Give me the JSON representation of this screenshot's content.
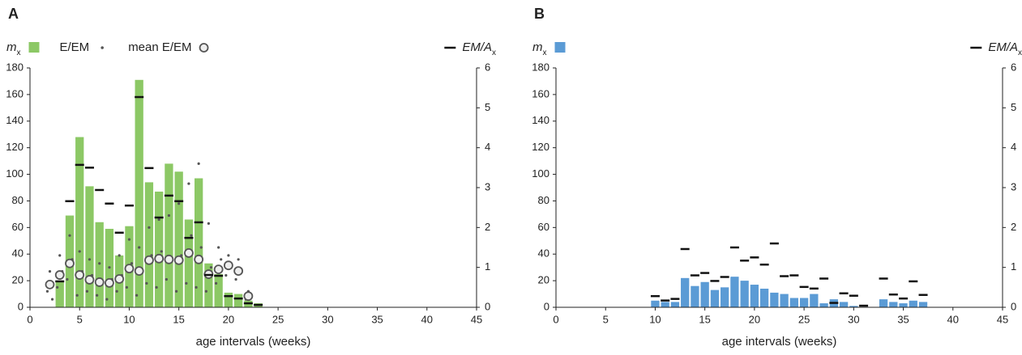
{
  "chart_data": [
    {
      "type": "bar",
      "panel_label": "A",
      "xlabel": "age intervals (weeks)",
      "xlim": [
        0,
        45
      ],
      "xticks": [
        0,
        5,
        10,
        15,
        20,
        25,
        30,
        35,
        40,
        45
      ],
      "ylim": [
        0,
        180
      ],
      "yticks": [
        0,
        20,
        40,
        60,
        80,
        100,
        120,
        140,
        160,
        180
      ],
      "y2lim": [
        0,
        6
      ],
      "y2ticks": [
        0,
        1,
        2,
        3,
        4,
        5,
        6
      ],
      "series": [
        {
          "name": "m",
          "name_sub": "x",
          "kind": "bar",
          "color": "#8cc865",
          "x": [
            3,
            4,
            5,
            6,
            7,
            8,
            9,
            10,
            11,
            12,
            13,
            14,
            15,
            16,
            17,
            18,
            19,
            20,
            21,
            22,
            23
          ],
          "values": [
            20,
            69,
            128,
            91,
            64,
            59,
            39,
            61,
            171,
            94,
            87,
            108,
            102,
            66,
            97,
            33,
            25,
            11,
            10,
            5,
            3
          ]
        },
        {
          "name": "E/EM",
          "kind": "dot",
          "axis": "y2",
          "color": "#555555",
          "x": [
            1.75,
            2,
            2.25,
            2.75,
            3,
            3.25,
            3.75,
            4,
            4.25,
            4.75,
            5,
            5.25,
            5.75,
            6,
            6.25,
            6.75,
            7,
            7.25,
            7.75,
            8,
            8.25,
            8.75,
            9,
            9.25,
            9.75,
            10,
            10.25,
            10.75,
            11,
            11.25,
            11.75,
            12,
            12.25,
            12.75,
            13,
            13.25,
            13.75,
            14,
            14.25,
            14.75,
            15,
            15.25,
            15.75,
            16,
            16.25,
            16.75,
            17,
            17.25,
            17.75,
            18,
            18.25,
            18.75,
            19,
            19.25,
            19.75,
            20,
            20.25,
            20.75,
            21,
            21.25,
            21.75,
            22,
            22.25
          ],
          "values": [
            0.4,
            0.9,
            0.2,
            0.5,
            1.3,
            0.9,
            0.7,
            1.8,
            1.2,
            0.3,
            1.4,
            0.9,
            0.4,
            1.2,
            0.8,
            0.3,
            1.1,
            0.6,
            0.2,
            1.0,
            0.7,
            0.4,
            1.3,
            0.8,
            0.5,
            1.7,
            1.1,
            0.3,
            1.5,
            0.9,
            0.6,
            2.0,
            1.3,
            0.5,
            2.2,
            1.4,
            0.7,
            2.3,
            1.2,
            0.4,
            2.6,
            1.3,
            0.6,
            3.1,
            1.8,
            0.5,
            3.6,
            1.5,
            0.4,
            2.1,
            1.0,
            0.6,
            1.5,
            1.2,
            0.8,
            1.3,
            1.1,
            0.7,
            1.2,
            0.9,
            0.2,
            0.4,
            0.3
          ]
        },
        {
          "name": "mean E/EM",
          "kind": "circle",
          "axis": "y2",
          "color": "#555555",
          "x": [
            2,
            3,
            4,
            5,
            6,
            7,
            8,
            9,
            10,
            11,
            12,
            13,
            14,
            15,
            16,
            17,
            18,
            19,
            20,
            21,
            22
          ],
          "values": [
            0.57,
            0.81,
            1.1,
            0.81,
            0.69,
            0.63,
            0.61,
            0.71,
            0.97,
            0.91,
            1.18,
            1.22,
            1.2,
            1.18,
            1.36,
            1.2,
            0.83,
            0.95,
            1.05,
            0.91,
            0.28
          ]
        },
        {
          "name": "EM/A",
          "name_sub": "x",
          "kind": "dash",
          "axis": "y2",
          "color": "#111111",
          "x": [
            3,
            4,
            5,
            6,
            7,
            8,
            9,
            10,
            11,
            12,
            13,
            14,
            15,
            16,
            17,
            18,
            19,
            20,
            21,
            22,
            23
          ],
          "values": [
            0.65,
            2.66,
            3.57,
            3.5,
            2.94,
            2.6,
            1.87,
            2.55,
            5.27,
            3.49,
            2.25,
            2.8,
            2.66,
            1.74,
            2.13,
            0.81,
            0.79,
            0.28,
            0.22,
            0.1,
            0.06
          ]
        }
      ]
    },
    {
      "type": "bar",
      "panel_label": "B",
      "xlabel": "age intervals (weeks)",
      "xlim": [
        0,
        45
      ],
      "xticks": [
        0,
        5,
        10,
        15,
        20,
        25,
        30,
        35,
        40,
        45
      ],
      "ylim": [
        0,
        180
      ],
      "yticks": [
        0,
        20,
        40,
        60,
        80,
        100,
        120,
        140,
        160,
        180
      ],
      "y2lim": [
        0,
        6
      ],
      "y2ticks": [
        0,
        1,
        2,
        3,
        4,
        5,
        6
      ],
      "series": [
        {
          "name": "m",
          "name_sub": "x",
          "kind": "bar",
          "color": "#5b9bd5",
          "x": [
            10,
            11,
            12,
            13,
            14,
            15,
            16,
            17,
            18,
            19,
            20,
            21,
            22,
            23,
            24,
            25,
            26,
            27,
            28,
            29,
            30,
            33,
            34,
            35,
            36,
            37
          ],
          "values": [
            5,
            4,
            4,
            22,
            16,
            19,
            13,
            15,
            23,
            20,
            17,
            14,
            11,
            10,
            7,
            7,
            10,
            3,
            6,
            4,
            1,
            6,
            4,
            3,
            5,
            4
          ]
        },
        {
          "name": "EM/A",
          "name_sub": "x",
          "kind": "dash",
          "axis": "y2",
          "color": "#111111",
          "x": [
            10,
            11,
            12,
            13,
            14,
            15,
            16,
            17,
            18,
            19,
            20,
            21,
            22,
            23,
            24,
            25,
            26,
            27,
            28,
            29,
            30,
            31,
            33,
            34,
            35,
            36,
            37
          ],
          "values": [
            0.28,
            0.17,
            0.21,
            1.46,
            0.8,
            0.86,
            0.66,
            0.76,
            1.5,
            1.17,
            1.25,
            1.07,
            1.6,
            0.78,
            0.8,
            0.51,
            0.47,
            0.72,
            0.11,
            0.35,
            0.29,
            0.04,
            0.72,
            0.32,
            0.22,
            0.65,
            0.31
          ]
        }
      ]
    }
  ]
}
